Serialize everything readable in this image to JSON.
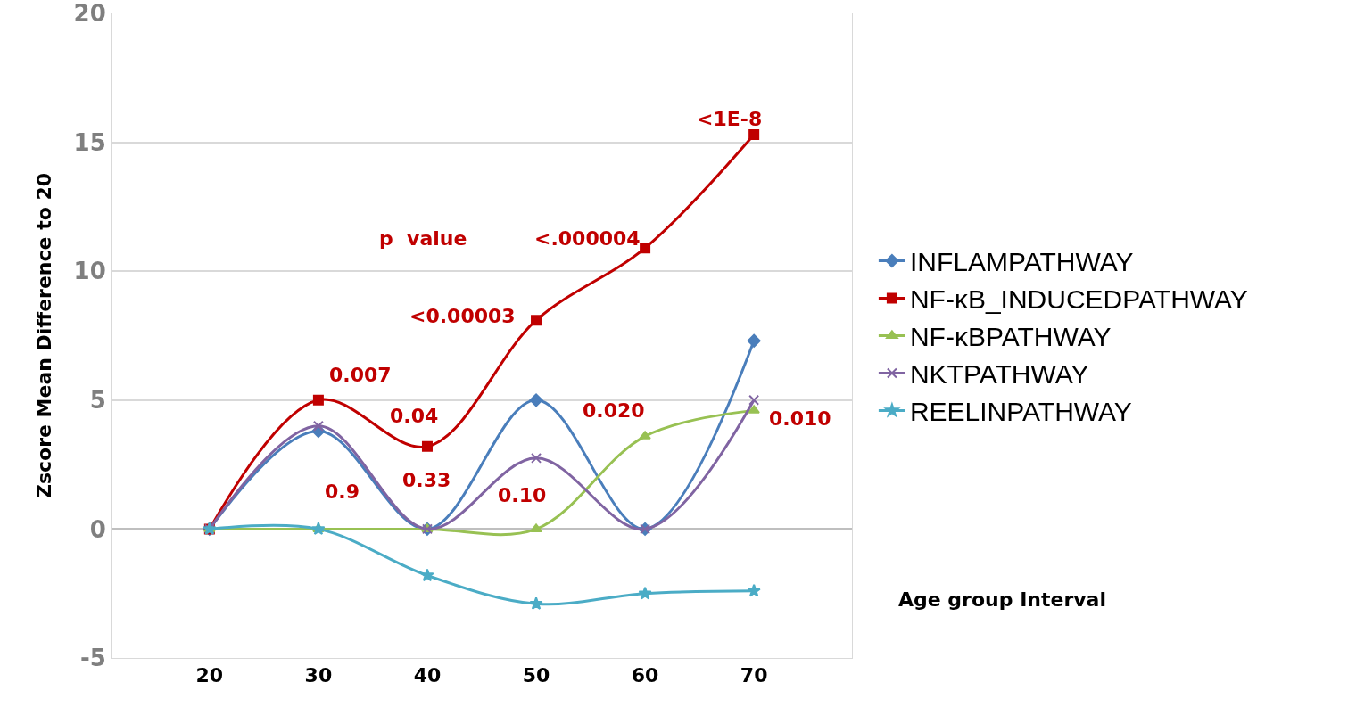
{
  "chart_data": {
    "type": "line",
    "ylabel": "Zscore Mean Difference to 20",
    "xlabel": "Age group Interval",
    "categories": [
      "20",
      "30",
      "40",
      "50",
      "60",
      "70"
    ],
    "series": [
      {
        "name": "INFLAMPATHWAY",
        "color": "#4a7ebb",
        "marker": "diamond",
        "values": [
          0,
          3.8,
          0,
          5.0,
          0,
          7.3
        ]
      },
      {
        "name": "NF-κB_INDUCEDPATHWAY",
        "color": "#c00000",
        "marker": "square",
        "values": [
          0,
          5.0,
          3.2,
          8.1,
          10.9,
          15.3
        ]
      },
      {
        "name": "NF-κBPATHWAY",
        "color": "#98c153",
        "marker": "triangle",
        "values": [
          0,
          0,
          0,
          0,
          3.6,
          4.6
        ]
      },
      {
        "name": "NKTPATHWAY",
        "color": "#8064a2",
        "marker": "cross",
        "values": [
          0,
          4.0,
          0,
          2.75,
          0,
          5.0
        ]
      },
      {
        "name": "REELINPATHWAY",
        "color": "#4bacc6",
        "marker": "star",
        "values": [
          0,
          0,
          -1.8,
          -2.9,
          -2.5,
          -2.4
        ]
      }
    ],
    "ylim": [
      -5,
      20
    ],
    "yticks": [
      -5,
      0,
      5,
      10,
      15,
      20
    ],
    "grid": "y",
    "legend": "right",
    "line_style": "solid",
    "annotations": [
      "p  value",
      "0.007",
      "0.04",
      "<0.00003",
      "<.000004",
      "<1E-8",
      "0.9",
      "0.33",
      "0.10",
      "0.020",
      "0.010"
    ]
  }
}
